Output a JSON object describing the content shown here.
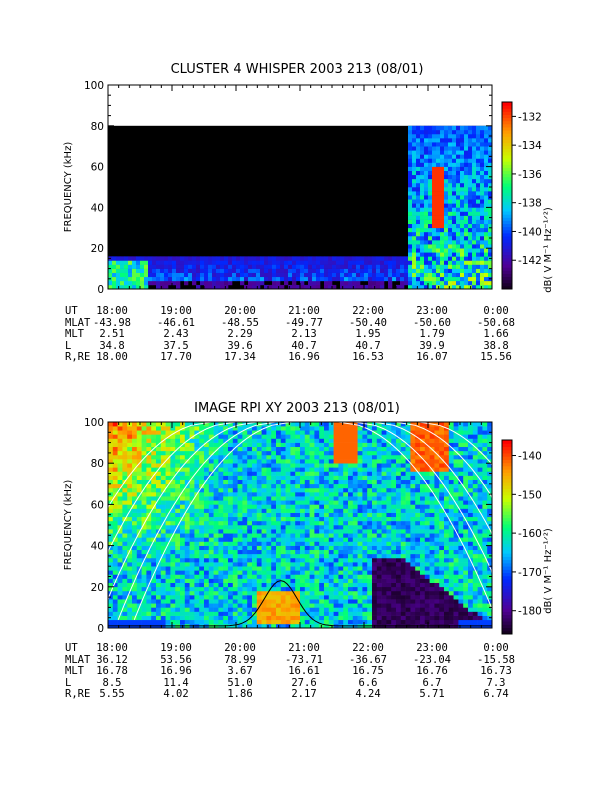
{
  "chart_data": [
    {
      "type": "heatmap",
      "title": "CLUSTER 4 WHISPER 2003 213 (08/01)",
      "ylabel": "FREQUENCY (kHz)",
      "ylim": [
        0,
        100
      ],
      "yticks": [
        "0",
        "20",
        "40",
        "60",
        "80",
        "100"
      ],
      "data_top_khz": 80,
      "colorbar": {
        "label": "dB( V M⁻¹ Hz⁻¹ᐟ²)",
        "range": [
          -144,
          -131
        ],
        "ticks": [
          "-132",
          "-134",
          "-136",
          "-138",
          "-140",
          "-142"
        ]
      },
      "ephemeris": {
        "rows": [
          {
            "label": "UT",
            "values": [
              "18:00",
              "19:00",
              "20:00",
              "21:00",
              "22:00",
              "23:00",
              "0:00"
            ]
          },
          {
            "label": "MLAT",
            "values": [
              "-43.98",
              "-46.61",
              "-48.55",
              "-49.77",
              "-50.40",
              "-50.60",
              "-50.68"
            ]
          },
          {
            "label": "MLT",
            "values": [
              "2.51",
              "2.43",
              "2.29",
              "2.13",
              "1.95",
              "1.79",
              "1.66"
            ]
          },
          {
            "label": "L",
            "values": [
              "34.8",
              "37.5",
              "39.6",
              "40.7",
              "40.7",
              "39.9",
              "38.8"
            ]
          },
          {
            "label": "R,RE",
            "values": [
              "18.00",
              "17.70",
              "17.34",
              "16.96",
              "16.53",
              "16.07",
              "15.56"
            ]
          }
        ]
      }
    },
    {
      "type": "heatmap",
      "title": "IMAGE RPI XY 2003 213 (08/01)",
      "ylabel": "FREQUENCY (kHz)",
      "ylim": [
        0,
        100
      ],
      "yticks": [
        "0",
        "20",
        "40",
        "60",
        "80",
        "100"
      ],
      "colorbar": {
        "label": "dB( V M⁻¹ Hz⁻¹ᐟ²)",
        "range": [
          -186,
          -136
        ],
        "ticks": [
          "-140",
          "-150",
          "-160",
          "-170",
          "-180"
        ]
      },
      "ephemeris": {
        "rows": [
          {
            "label": "UT",
            "values": [
              "18:00",
              "19:00",
              "20:00",
              "21:00",
              "22:00",
              "23:00",
              "0:00"
            ]
          },
          {
            "label": "MLAT",
            "values": [
              "36.12",
              "53.56",
              "78.99",
              "-73.71",
              "-36.67",
              "-23.04",
              "-15.58"
            ]
          },
          {
            "label": "MLT",
            "values": [
              "16.78",
              "16.96",
              "3.67",
              "16.61",
              "16.75",
              "16.76",
              "16.73"
            ]
          },
          {
            "label": "L",
            "values": [
              "8.5",
              "11.4",
              "51.0",
              "27.6",
              "6.6",
              "6.7",
              "7.3"
            ]
          },
          {
            "label": "R,RE",
            "values": [
              "5.55",
              "4.02",
              "1.86",
              "2.17",
              "4.24",
              "5.71",
              "6.74"
            ]
          }
        ]
      }
    }
  ]
}
